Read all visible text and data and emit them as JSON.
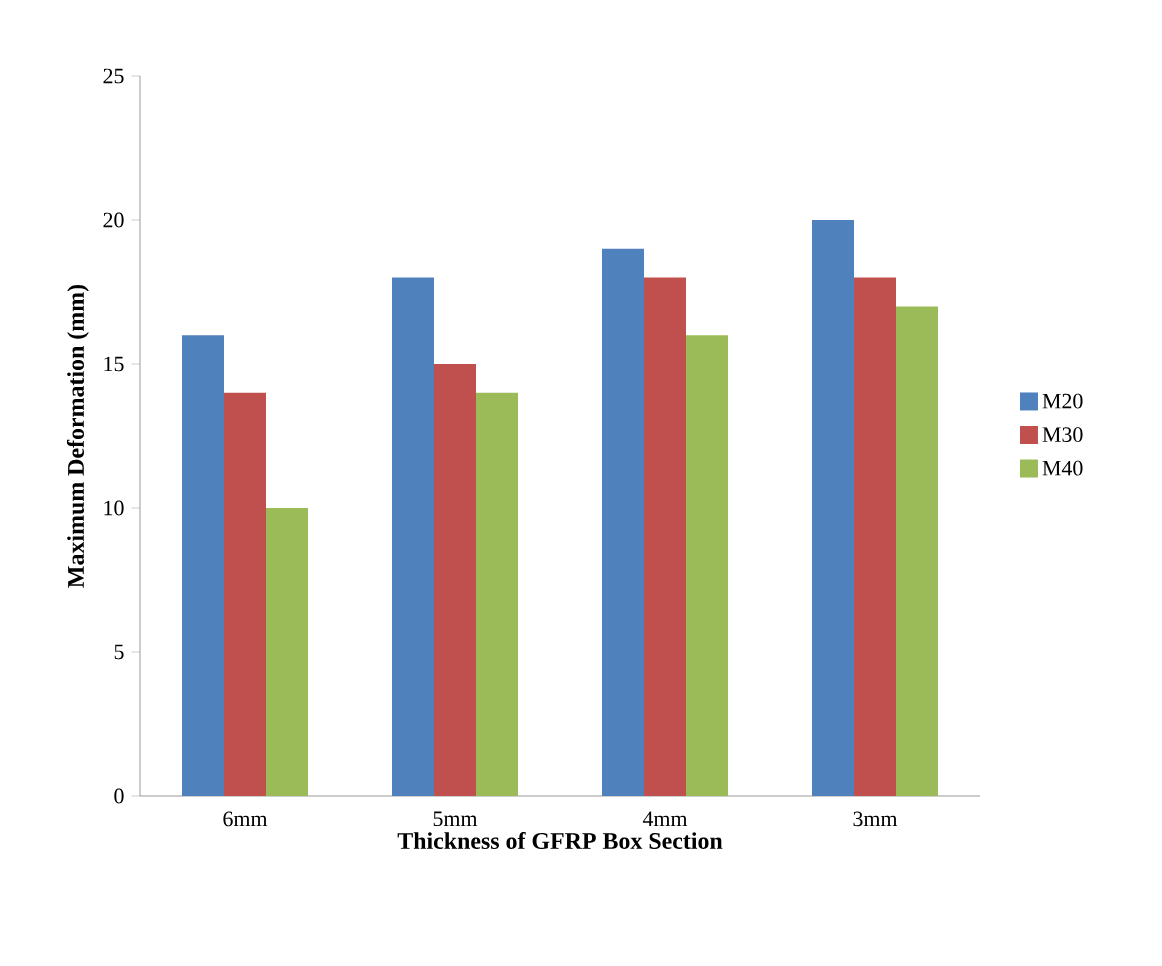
{
  "chart_data": {
    "type": "bar",
    "xlabel": "Thickness of GFRP Box Section",
    "ylabel": "Maximum Deformation (mm)",
    "categories": [
      "6mm",
      "5mm",
      "4mm",
      "3mm"
    ],
    "series": [
      {
        "name": "M20",
        "color": "#4f81bd",
        "values": [
          16,
          18,
          19,
          20
        ]
      },
      {
        "name": "M30",
        "color": "#c0504d",
        "values": [
          14,
          15,
          18,
          18
        ]
      },
      {
        "name": "M40",
        "color": "#9bbb59",
        "values": [
          10,
          14,
          16,
          17
        ]
      }
    ],
    "ylim": [
      0,
      25
    ],
    "yticks": [
      0,
      5,
      10,
      15,
      20,
      25
    ],
    "legend": "right",
    "grid": false
  }
}
